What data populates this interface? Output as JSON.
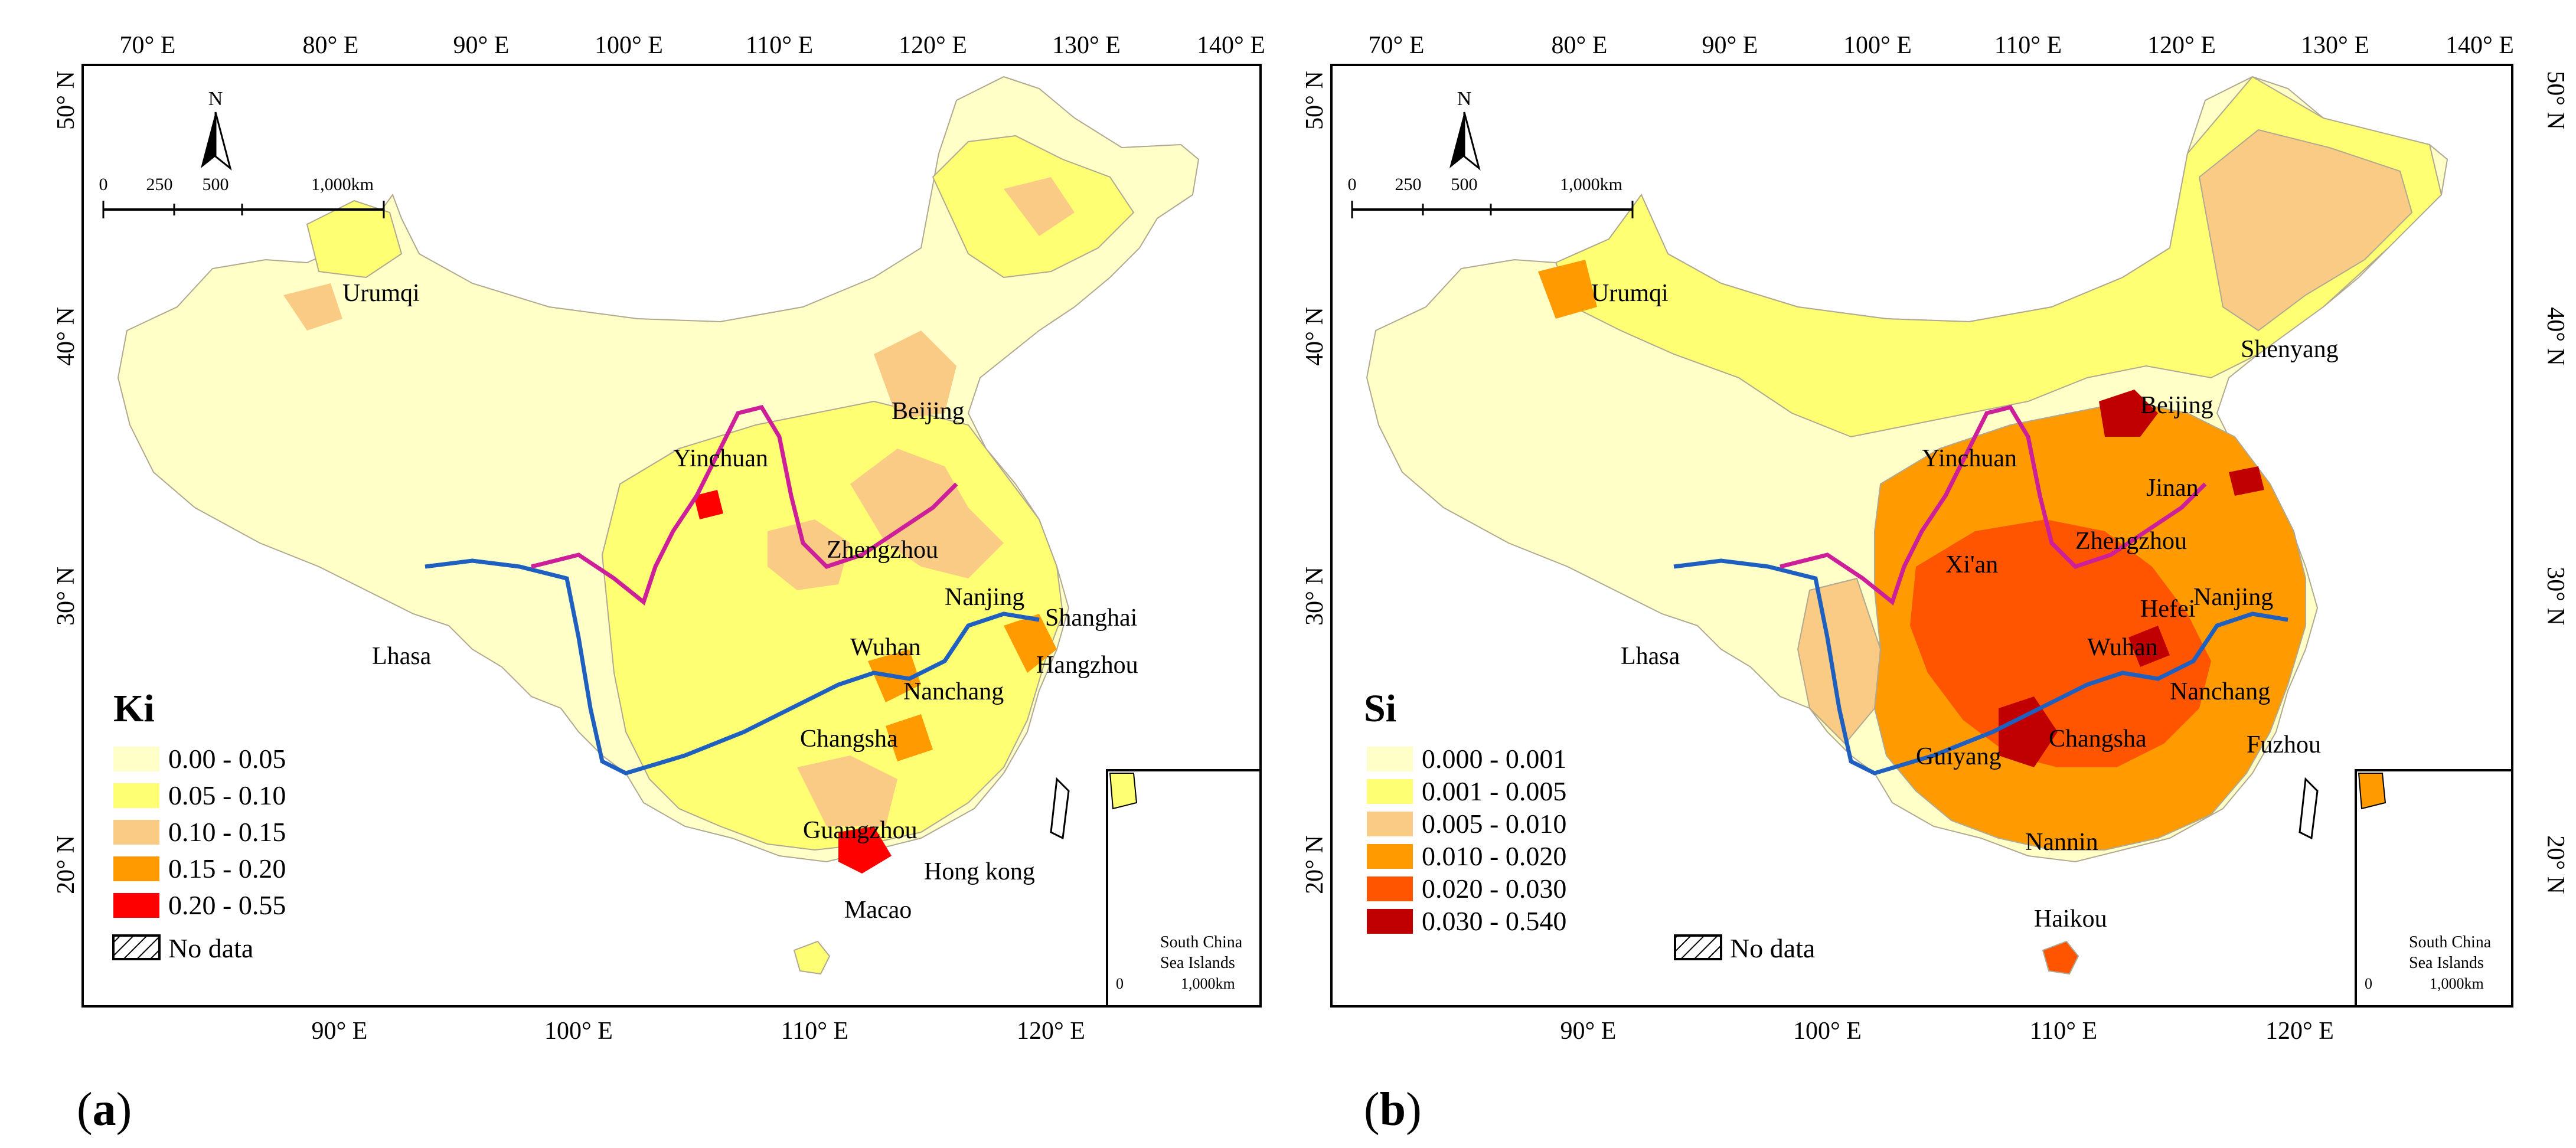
{
  "panels": [
    {
      "id": "a",
      "label": "a",
      "index_title": "Ki",
      "top_lon_ticks": [
        "70° E",
        "80° E",
        "90° E",
        "100° E",
        "110° E",
        "120° E",
        "130° E",
        "140° E"
      ],
      "bottom_lon_ticks": [
        "90° E",
        "100° E",
        "110° E",
        "120° E"
      ],
      "lat_ticks": [
        "50° N",
        "40° N",
        "30° N",
        "20° N"
      ],
      "north_label": "N",
      "scale_labels": [
        "0",
        "250",
        "500",
        "1,000km"
      ],
      "legend": [
        {
          "range": "0.00 - 0.05",
          "color": "#ffffc8"
        },
        {
          "range": "0.05 - 0.10",
          "color": "#ffff73"
        },
        {
          "range": "0.10 - 0.15",
          "color": "#f9cb84"
        },
        {
          "range": "0.15 - 0.20",
          "color": "#ff9a00"
        },
        {
          "range": "0.20 - 0.55",
          "color": "#ff0000"
        }
      ],
      "no_data_label": "No data",
      "cities": [
        "Urumqi",
        "Yinchuan",
        "Beijing",
        "Zhengzhou",
        "Nanjing",
        "Shanghai",
        "Hangzhou",
        "Wuhan",
        "Nanchang",
        "Changsha",
        "Lhasa",
        "Guangzhou",
        "Hong kong",
        "Macao"
      ],
      "inset_label": [
        "South China",
        "Sea Islands",
        "1,000km",
        "0"
      ]
    },
    {
      "id": "b",
      "label": "b",
      "index_title": "Si",
      "top_lon_ticks": [
        "70° E",
        "80° E",
        "90° E",
        "100° E",
        "110° E",
        "120° E",
        "130° E",
        "140° E"
      ],
      "bottom_lon_ticks": [
        "90° E",
        "100° E",
        "110° E",
        "120° E"
      ],
      "lat_ticks": [
        "50° N",
        "40° N",
        "30° N",
        "20° N"
      ],
      "north_label": "N",
      "scale_labels": [
        "0",
        "250",
        "500",
        "1,000km"
      ],
      "legend": [
        {
          "range": "0.000 - 0.001",
          "color": "#ffffc8"
        },
        {
          "range": "0.001 - 0.005",
          "color": "#ffff73"
        },
        {
          "range": "0.005 - 0.010",
          "color": "#f9cb84"
        },
        {
          "range": "0.010 - 0.020",
          "color": "#ff9a00"
        },
        {
          "range": "0.020 - 0.030",
          "color": "#ff5500"
        },
        {
          "range": "0.030 - 0.540",
          "color": "#c00000"
        }
      ],
      "no_data_label": "No data",
      "cities": [
        "Urumqi",
        "Shenyang",
        "Beijing",
        "Yinchuan",
        "Jinan",
        "Zhengzhou",
        "Xi'an",
        "Nanjing",
        "Hefei",
        "Wuhan",
        "Lhasa",
        "Nanchang",
        "Changsha",
        "Guiyang",
        "Fuzhou",
        "Nannin",
        "Haikou"
      ],
      "inset_label": [
        "South China",
        "Sea Islands",
        "1,000km",
        "0"
      ]
    }
  ],
  "colors": {
    "yangtze_river": "#1f5fbf",
    "yellow_river": "#cc1f99",
    "frame": "#000000"
  }
}
